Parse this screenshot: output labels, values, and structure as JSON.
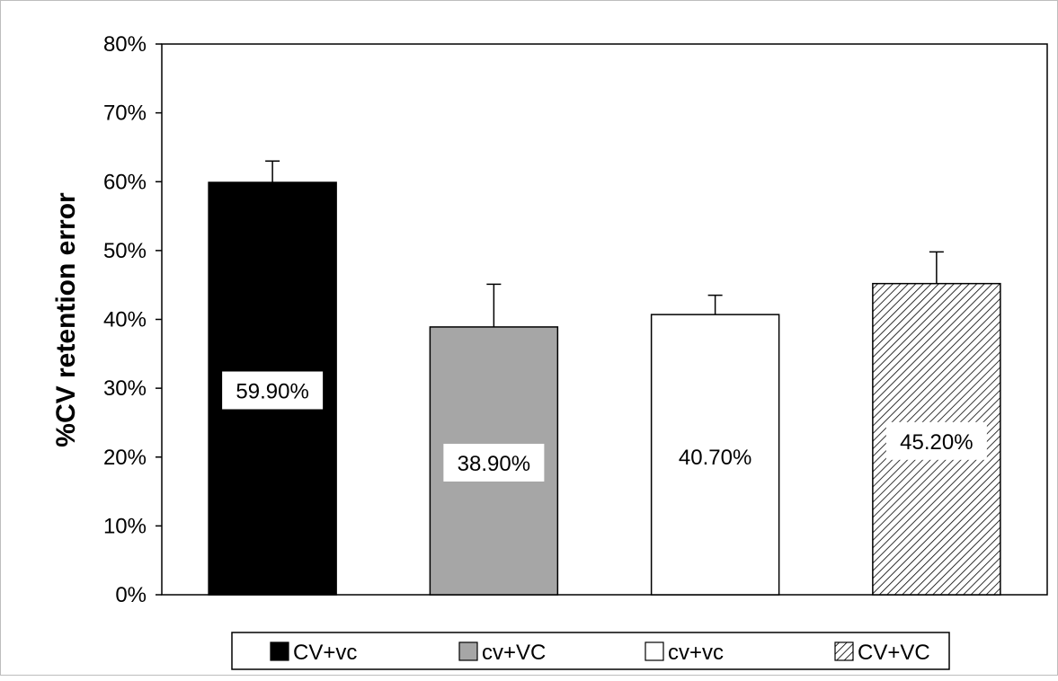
{
  "chart_data": {
    "type": "bar",
    "title": "",
    "xlabel": "",
    "ylabel": "%CV retention error",
    "ylim": [
      0,
      80
    ],
    "yticks": [
      "0%",
      "10%",
      "20%",
      "30%",
      "40%",
      "50%",
      "60%",
      "70%",
      "80%"
    ],
    "grid": false,
    "legend_position": "bottom",
    "categories": [
      "CV+vc",
      "cv+VC",
      "cv+vc",
      "CV+VC"
    ],
    "values": [
      59.9,
      38.9,
      40.7,
      45.2
    ],
    "error_plus": [
      3.1,
      6.2,
      2.8,
      4.6
    ],
    "data_labels": [
      "59.90%",
      "38.90%",
      "40.70%",
      "45.20%"
    ],
    "legend": [
      "CV+vc",
      "cv+VC",
      "cv+vc",
      "CV+VC"
    ],
    "fills": [
      "#000000",
      "#a6a6a6",
      "#ffffff",
      "hatch"
    ]
  }
}
